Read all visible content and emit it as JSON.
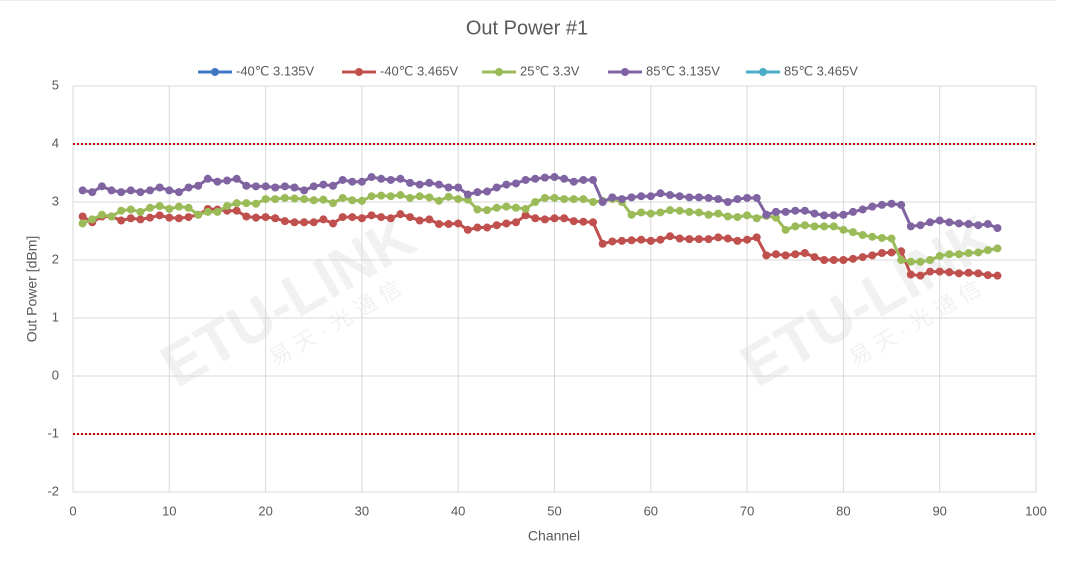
{
  "chart_data": {
    "type": "line",
    "title": "Out Power #1",
    "xlabel": "Channel",
    "ylabel": "Out Power [dBm]",
    "watermark": [
      "ETU-LINK",
      "易 天 · 光 通 信"
    ],
    "x": [
      1,
      2,
      3,
      4,
      5,
      6,
      7,
      8,
      9,
      10,
      11,
      12,
      13,
      14,
      15,
      16,
      17,
      18,
      19,
      20,
      21,
      22,
      23,
      24,
      25,
      26,
      27,
      28,
      29,
      30,
      31,
      32,
      33,
      34,
      35,
      36,
      37,
      38,
      39,
      40,
      41,
      42,
      43,
      44,
      45,
      46,
      47,
      48,
      49,
      50,
      51,
      52,
      53,
      54,
      55,
      56,
      57,
      58,
      59,
      60,
      61,
      62,
      63,
      64,
      65,
      66,
      67,
      68,
      69,
      70,
      71,
      72,
      73,
      74,
      75,
      76,
      77,
      78,
      79,
      80,
      81,
      82,
      83,
      84,
      85,
      86,
      87,
      88,
      89,
      90,
      91,
      92,
      93,
      94,
      95,
      96
    ],
    "series": [
      {
        "name": "-40℃ 3.135V",
        "color": "#3c78c3",
        "values": [
          null,
          null,
          null,
          null,
          null,
          null,
          null,
          null,
          null,
          null,
          null,
          null,
          null,
          null,
          null,
          null,
          null,
          null,
          null,
          null,
          null,
          null,
          null,
          null,
          null,
          null,
          null,
          null,
          null,
          null,
          null,
          null,
          null,
          null,
          null,
          null,
          null,
          null,
          null,
          null,
          null,
          null,
          null,
          null,
          null,
          null,
          null,
          null,
          null,
          null,
          null,
          null,
          null,
          null,
          null,
          null,
          null,
          null,
          null,
          null,
          null,
          null,
          null,
          null,
          null,
          null,
          null,
          null,
          null,
          null,
          null,
          null,
          null,
          null,
          null,
          null,
          null,
          null,
          null,
          null,
          null,
          null,
          null,
          null,
          null,
          null,
          null,
          null,
          null,
          null,
          null,
          null,
          null,
          null,
          null,
          null
        ]
      },
      {
        "name": "-40℃ 3.465V",
        "color": "#c0504d",
        "values": [
          2.75,
          2.65,
          2.75,
          2.75,
          2.68,
          2.72,
          2.7,
          2.73,
          2.77,
          2.73,
          2.72,
          2.74,
          2.78,
          2.88,
          2.87,
          2.85,
          2.85,
          2.75,
          2.73,
          2.74,
          2.72,
          2.67,
          2.65,
          2.65,
          2.65,
          2.7,
          2.63,
          2.74,
          2.74,
          2.72,
          2.77,
          2.74,
          2.72,
          2.79,
          2.74,
          2.68,
          2.7,
          2.62,
          2.62,
          2.63,
          2.52,
          2.56,
          2.56,
          2.6,
          2.63,
          2.65,
          2.77,
          2.72,
          2.7,
          2.72,
          2.72,
          2.67,
          2.66,
          2.65,
          2.28,
          2.32,
          2.33,
          2.34,
          2.35,
          2.33,
          2.35,
          2.41,
          2.37,
          2.36,
          2.36,
          2.36,
          2.39,
          2.37,
          2.33,
          2.35,
          2.39,
          2.08,
          2.1,
          2.08,
          2.1,
          2.12,
          2.05,
          2.0,
          2.0,
          2.0,
          2.02,
          2.05,
          2.08,
          2.12,
          2.13,
          2.15,
          1.75,
          1.73,
          1.8,
          1.8,
          1.79,
          1.77,
          1.78,
          1.77,
          1.74,
          1.73
        ]
      },
      {
        "name": "25℃ 3.3V",
        "color": "#9bbb59",
        "values": [
          2.63,
          2.7,
          2.78,
          2.75,
          2.85,
          2.87,
          2.83,
          2.9,
          2.93,
          2.88,
          2.92,
          2.9,
          2.78,
          2.83,
          2.83,
          2.93,
          2.98,
          2.98,
          2.97,
          3.05,
          3.05,
          3.07,
          3.06,
          3.05,
          3.03,
          3.04,
          2.98,
          3.07,
          3.03,
          3.02,
          3.1,
          3.11,
          3.1,
          3.12,
          3.07,
          3.1,
          3.08,
          3.02,
          3.09,
          3.05,
          3.04,
          2.87,
          2.86,
          2.9,
          2.92,
          2.9,
          2.88,
          3.0,
          3.07,
          3.07,
          3.05,
          3.05,
          3.05,
          3.0,
          3.02,
          3.05,
          3.0,
          2.78,
          2.82,
          2.8,
          2.82,
          2.86,
          2.85,
          2.83,
          2.82,
          2.78,
          2.8,
          2.75,
          2.74,
          2.77,
          2.72,
          2.76,
          2.73,
          2.52,
          2.58,
          2.6,
          2.58,
          2.58,
          2.58,
          2.52,
          2.48,
          2.43,
          2.4,
          2.38,
          2.37,
          2.0,
          1.97,
          1.97,
          2.0,
          2.07,
          2.1,
          2.1,
          2.12,
          2.13,
          2.17,
          2.2
        ]
      },
      {
        "name": "85℃ 3.135V",
        "color": "#8064a2",
        "values": [
          3.2,
          3.17,
          3.27,
          3.2,
          3.17,
          3.2,
          3.17,
          3.2,
          3.25,
          3.2,
          3.17,
          3.25,
          3.28,
          3.4,
          3.35,
          3.37,
          3.4,
          3.28,
          3.27,
          3.27,
          3.25,
          3.27,
          3.25,
          3.2,
          3.27,
          3.3,
          3.28,
          3.38,
          3.35,
          3.35,
          3.43,
          3.4,
          3.38,
          3.4,
          3.33,
          3.3,
          3.33,
          3.3,
          3.25,
          3.25,
          3.13,
          3.17,
          3.18,
          3.25,
          3.3,
          3.32,
          3.38,
          3.4,
          3.42,
          3.43,
          3.4,
          3.35,
          3.38,
          3.38,
          3.0,
          3.08,
          3.05,
          3.08,
          3.1,
          3.1,
          3.15,
          3.12,
          3.1,
          3.08,
          3.08,
          3.07,
          3.05,
          3.0,
          3.05,
          3.07,
          3.07,
          2.78,
          2.83,
          2.83,
          2.85,
          2.85,
          2.8,
          2.77,
          2.77,
          2.78,
          2.83,
          2.87,
          2.92,
          2.95,
          2.97,
          2.95,
          2.58,
          2.6,
          2.65,
          2.68,
          2.65,
          2.63,
          2.62,
          2.6,
          2.62,
          2.55
        ]
      },
      {
        "name": "85℃ 3.465V",
        "color": "#4bacc6",
        "values": [
          null,
          null,
          null,
          null,
          null,
          null,
          null,
          null,
          null,
          null,
          null,
          null,
          null,
          null,
          null,
          null,
          null,
          null,
          null,
          null,
          null,
          null,
          null,
          null,
          null,
          null,
          null,
          null,
          null,
          null,
          null,
          null,
          null,
          null,
          null,
          null,
          null,
          null,
          null,
          null,
          null,
          null,
          null,
          null,
          null,
          null,
          null,
          null,
          null,
          null,
          null,
          null,
          null,
          null,
          null,
          null,
          null,
          null,
          null,
          null,
          null,
          null,
          null,
          null,
          null,
          null,
          null,
          null,
          null,
          null,
          null,
          null,
          null,
          null,
          null,
          null,
          null,
          null,
          null,
          null,
          null,
          null,
          null,
          null,
          null,
          null,
          null,
          null,
          null,
          null,
          null,
          null,
          null,
          null,
          null,
          null
        ]
      }
    ],
    "xlim": [
      0,
      100
    ],
    "xticks": [
      0,
      10,
      20,
      30,
      40,
      50,
      60,
      70,
      80,
      90,
      100
    ],
    "ylim": [
      -2,
      5
    ],
    "yticks": [
      -2,
      -1,
      0,
      1,
      2,
      3,
      4,
      5
    ],
    "grid": true,
    "legend": "top",
    "reference_lines": {
      "values": [
        4,
        -1
      ],
      "color": "#c00000"
    }
  }
}
